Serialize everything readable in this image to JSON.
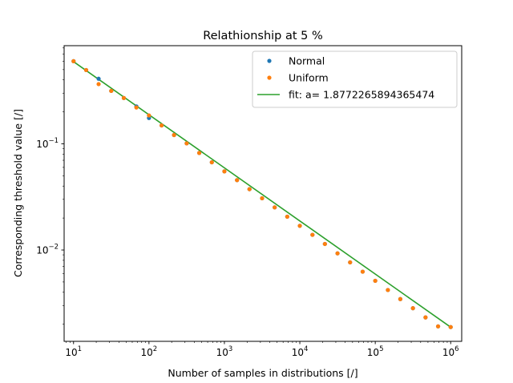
{
  "chart_data": {
    "type": "scatter",
    "title": "Relathionship at 5 %",
    "xlabel": "Number of samples in distributions [/]",
    "ylabel": "Corresponding threshold value [/]",
    "xscale": "log",
    "yscale": "log",
    "xlim": [
      7.5,
      1400000
    ],
    "ylim": [
      0.00138,
      0.84
    ],
    "x_ticks": [
      {
        "value": 10,
        "base": "10",
        "exp": "1"
      },
      {
        "value": 100,
        "base": "10",
        "exp": "2"
      },
      {
        "value": 1000,
        "base": "10",
        "exp": "3"
      },
      {
        "value": 10000,
        "base": "10",
        "exp": "4"
      },
      {
        "value": 100000,
        "base": "10",
        "exp": "5"
      },
      {
        "value": 1000000,
        "base": "10",
        "exp": "6"
      }
    ],
    "y_ticks": [
      {
        "value": 0.01,
        "base": "10",
        "exp": "−2"
      },
      {
        "value": 0.1,
        "base": "10",
        "exp": "−1"
      }
    ],
    "grid": false,
    "legend_position": "top-right",
    "series": [
      {
        "name": "Normal",
        "kind": "points",
        "color": "#1f77b4",
        "x": [
          10,
          14.7,
          21.5,
          31.6,
          46.4,
          68.1,
          100,
          147,
          215,
          316,
          464,
          681,
          1000,
          1470,
          2150,
          3160,
          4640,
          6810,
          10000,
          14700,
          21500,
          31600,
          46400,
          68100,
          100000,
          147000,
          215000,
          316000,
          464000,
          681000,
          1000000
        ],
        "y": [
          0.6,
          0.495,
          0.41,
          0.315,
          0.27,
          0.225,
          0.175,
          0.149,
          0.121,
          0.101,
          0.082,
          0.067,
          0.055,
          0.0455,
          0.0374,
          0.0307,
          0.0252,
          0.0206,
          0.0169,
          0.0139,
          0.0114,
          0.0093,
          0.00765,
          0.00625,
          0.00513,
          0.0042,
          0.00345,
          0.00283,
          0.00232,
          0.00191,
          0.00188
        ]
      },
      {
        "name": "Uniform",
        "kind": "points",
        "color": "#ff7f0e",
        "x": [
          10,
          14.7,
          21.5,
          31.6,
          46.4,
          68.1,
          100,
          147,
          215,
          316,
          464,
          681,
          1000,
          1470,
          2150,
          3160,
          4640,
          6810,
          10000,
          14700,
          21500,
          31600,
          46400,
          68100,
          100000,
          147000,
          215000,
          316000,
          464000,
          681000,
          1000000
        ],
        "y": [
          0.6,
          0.495,
          0.365,
          0.315,
          0.27,
          0.22,
          0.185,
          0.149,
          0.121,
          0.101,
          0.082,
          0.067,
          0.055,
          0.0455,
          0.0374,
          0.0307,
          0.0252,
          0.0206,
          0.0169,
          0.0139,
          0.0114,
          0.0093,
          0.00765,
          0.00625,
          0.00513,
          0.0042,
          0.00345,
          0.00283,
          0.00232,
          0.00191,
          0.00188
        ]
      },
      {
        "name": "fit: a= 1.8772265894365474",
        "kind": "line",
        "color": "#2ca02c",
        "x": [
          10,
          1000000
        ],
        "y": [
          0.594,
          0.001877
        ]
      }
    ]
  }
}
